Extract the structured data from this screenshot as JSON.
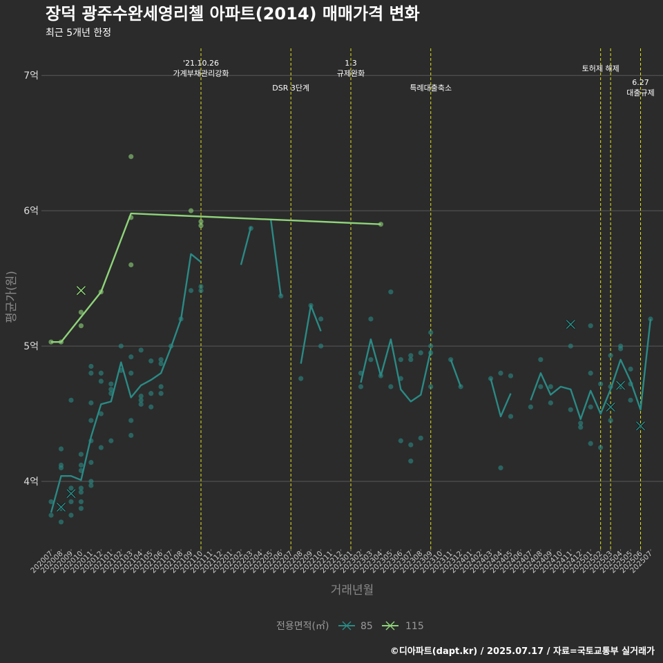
{
  "chart_data": {
    "type": "line",
    "title": "장덕 광주수완세영리첼 아파트(2014) 매매가격 변화",
    "subtitle": "최근 5개년 한정",
    "xlabel": "거래년월",
    "ylabel": "평균가(원)",
    "ylim": [
      3.5,
      7.2
    ],
    "yticks": [
      {
        "value": 4,
        "label": "4억"
      },
      {
        "value": 5,
        "label": "5억"
      },
      {
        "value": 6,
        "label": "6억"
      },
      {
        "value": 7,
        "label": "7억"
      }
    ],
    "categories": [
      "202007",
      "202008",
      "202009",
      "202010",
      "202011",
      "202012",
      "202101",
      "202102",
      "202103",
      "202104",
      "202105",
      "202106",
      "202107",
      "202108",
      "202109",
      "202110",
      "202111",
      "202112",
      "202201",
      "202202",
      "202203",
      "202204",
      "202205",
      "202206",
      "202207",
      "202208",
      "202209",
      "202210",
      "202211",
      "202212",
      "202301",
      "202302",
      "202303",
      "202304",
      "202305",
      "202306",
      "202307",
      "202308",
      "202309",
      "202310",
      "202311",
      "202312",
      "202401",
      "202402",
      "202403",
      "202404",
      "202405",
      "202406",
      "202407",
      "202408",
      "202409",
      "202410",
      "202411",
      "202412",
      "202501",
      "202502",
      "202503",
      "202504",
      "202505",
      "202506",
      "202507"
    ],
    "legend": {
      "title": "전용면적(㎡)",
      "position": "bottom"
    },
    "series": [
      {
        "name": "85",
        "color": "#2a8a85",
        "line": [
          [
            "202007",
            3.77
          ],
          [
            "202008",
            4.04
          ],
          [
            "202009",
            4.04
          ],
          [
            "202010",
            4.01
          ],
          [
            "202011",
            4.33
          ],
          [
            "202012",
            4.57
          ],
          [
            "202101",
            4.59
          ],
          [
            "202102",
            4.88
          ],
          [
            "202103",
            4.62
          ],
          [
            "202104",
            4.71
          ],
          [
            "202105",
            4.75
          ],
          [
            "202106",
            4.8
          ],
          [
            "202107",
            4.99
          ],
          [
            "202108",
            5.2
          ],
          [
            "202109",
            5.68
          ],
          [
            "202110",
            5.62
          ],
          null,
          [
            "202202",
            5.6
          ],
          [
            "202203",
            5.88
          ],
          null,
          [
            "202205",
            5.93
          ],
          [
            "202206",
            5.37
          ],
          null,
          [
            "202208",
            4.87
          ],
          [
            "202209",
            5.3
          ],
          [
            "202210",
            5.11
          ],
          null,
          [
            "202302",
            4.73
          ],
          [
            "202303",
            5.05
          ],
          [
            "202304",
            4.78
          ],
          [
            "202305",
            5.05
          ],
          [
            "202306",
            4.68
          ],
          [
            "202307",
            4.59
          ],
          [
            "202308",
            4.64
          ],
          [
            "202309",
            4.97
          ],
          null,
          [
            "202311",
            4.9
          ],
          [
            "202312",
            4.7
          ],
          null,
          [
            "202403",
            4.76
          ],
          [
            "202404",
            4.48
          ],
          [
            "202405",
            4.65
          ],
          null,
          [
            "202407",
            4.6
          ],
          [
            "202408",
            4.8
          ],
          [
            "202409",
            4.64
          ],
          [
            "202410",
            4.7
          ],
          [
            "202411",
            4.68
          ],
          [
            "202412",
            4.46
          ],
          [
            "202501",
            4.67
          ],
          [
            "202502",
            4.5
          ],
          [
            "202503",
            4.68
          ],
          [
            "202504",
            4.9
          ],
          [
            "202505",
            4.74
          ],
          [
            "202506",
            4.53
          ],
          [
            "202507",
            5.2
          ]
        ],
        "points": [
          [
            "202007",
            3.85
          ],
          [
            "202007",
            3.75
          ],
          [
            "202008",
            3.7
          ],
          [
            "202008",
            4.12
          ],
          [
            "202008",
            4.1
          ],
          [
            "202008",
            4.24
          ],
          [
            "202008",
            3.8
          ],
          [
            "202009",
            3.75
          ],
          [
            "202009",
            3.95
          ],
          [
            "202009",
            4.6
          ],
          [
            "202009",
            3.85
          ],
          [
            "202010",
            4.2
          ],
          [
            "202010",
            4.12
          ],
          [
            "202010",
            3.95
          ],
          [
            "202010",
            3.85
          ],
          [
            "202010",
            3.8
          ],
          [
            "202010",
            4.08
          ],
          [
            "202010",
            3.92
          ],
          [
            "202011",
            4.0
          ],
          [
            "202011",
            4.8
          ],
          [
            "202011",
            4.85
          ],
          [
            "202011",
            4.45
          ],
          [
            "202011",
            4.58
          ],
          [
            "202011",
            4.3
          ],
          [
            "202011",
            4.14
          ],
          [
            "202011",
            3.97
          ],
          [
            "202012",
            4.5
          ],
          [
            "202012",
            4.8
          ],
          [
            "202012",
            4.74
          ],
          [
            "202012",
            4.25
          ],
          [
            "202101",
            4.72
          ],
          [
            "202101",
            4.68
          ],
          [
            "202101",
            4.65
          ],
          [
            "202101",
            4.3
          ],
          [
            "202102",
            5.0
          ],
          [
            "202102",
            4.82
          ],
          [
            "202103",
            4.92
          ],
          [
            "202103",
            4.8
          ],
          [
            "202103",
            4.45
          ],
          [
            "202103",
            4.34
          ],
          [
            "202104",
            4.97
          ],
          [
            "202104",
            4.63
          ],
          [
            "202104",
            4.6
          ],
          [
            "202104",
            4.57
          ],
          [
            "202105",
            4.89
          ],
          [
            "202105",
            4.65
          ],
          [
            "202105",
            4.55
          ],
          [
            "202106",
            4.9
          ],
          [
            "202106",
            4.87
          ],
          [
            "202106",
            4.7
          ],
          [
            "202106",
            4.65
          ],
          [
            "202107",
            5.0
          ],
          [
            "202108",
            5.2
          ],
          [
            "202109",
            5.41
          ],
          [
            "202110",
            5.41
          ],
          [
            "202110",
            5.44
          ],
          [
            "202203",
            5.87
          ],
          [
            "202206",
            5.37
          ],
          [
            "202208",
            4.76
          ],
          [
            "202209",
            5.3
          ],
          [
            "202210",
            5.2
          ],
          [
            "202210",
            5.0
          ],
          [
            "202302",
            4.8
          ],
          [
            "202302",
            4.7
          ],
          [
            "202303",
            5.2
          ],
          [
            "202303",
            4.9
          ],
          [
            "202304",
            4.78
          ],
          [
            "202305",
            5.4
          ],
          [
            "202305",
            4.7
          ],
          [
            "202306",
            4.9
          ],
          [
            "202306",
            4.76
          ],
          [
            "202306",
            4.3
          ],
          [
            "202307",
            4.93
          ],
          [
            "202307",
            4.9
          ],
          [
            "202307",
            4.27
          ],
          [
            "202307",
            4.15
          ],
          [
            "202308",
            4.95
          ],
          [
            "202308",
            4.32
          ],
          [
            "202309",
            5.1
          ],
          [
            "202309",
            5.0
          ],
          [
            "202309",
            4.95
          ],
          [
            "202309",
            4.7
          ],
          [
            "202311",
            4.9
          ],
          [
            "202312",
            4.7
          ],
          [
            "202403",
            4.76
          ],
          [
            "202404",
            4.8
          ],
          [
            "202404",
            4.1
          ],
          [
            "202405",
            4.78
          ],
          [
            "202405",
            4.48
          ],
          [
            "202407",
            4.55
          ],
          [
            "202408",
            4.9
          ],
          [
            "202408",
            4.7
          ],
          [
            "202409",
            4.7
          ],
          [
            "202409",
            4.58
          ],
          [
            "202411",
            5.0
          ],
          [
            "202411",
            4.53
          ],
          [
            "202412",
            4.4
          ],
          [
            "202412",
            4.43
          ],
          [
            "202501",
            5.15
          ],
          [
            "202501",
            4.8
          ],
          [
            "202501",
            4.55
          ],
          [
            "202501",
            4.28
          ],
          [
            "202502",
            4.72
          ],
          [
            "202502",
            4.25
          ],
          [
            "202503",
            4.93
          ],
          [
            "202503",
            4.7
          ],
          [
            "202503",
            4.45
          ],
          [
            "202504",
            5.0
          ],
          [
            "202504",
            4.98
          ],
          [
            "202504",
            4.7
          ],
          [
            "202505",
            4.83
          ],
          [
            "202505",
            4.72
          ],
          [
            "202505",
            4.6
          ],
          [
            "202507",
            5.2
          ]
        ],
        "crosses": [
          [
            "202008",
            3.81
          ],
          [
            "202009",
            3.91
          ],
          [
            "202411",
            5.16
          ],
          [
            "202503",
            4.55
          ],
          [
            "202504",
            4.71
          ],
          [
            "202506",
            4.41
          ]
        ]
      },
      {
        "name": "115",
        "color": "#8fd47a",
        "line": [
          [
            "202007",
            5.03
          ],
          [
            "202008",
            5.03
          ],
          [
            "202012",
            5.4
          ],
          [
            "202103",
            5.98
          ],
          [
            "202304",
            5.9
          ]
        ],
        "points": [
          [
            "202007",
            5.03
          ],
          [
            "202008",
            5.03
          ],
          [
            "202010",
            5.25
          ],
          [
            "202010",
            5.15
          ],
          [
            "202012",
            5.4
          ],
          [
            "202103",
            6.4
          ],
          [
            "202103",
            5.6
          ],
          [
            "202103",
            5.95
          ],
          [
            "202109",
            6.0
          ],
          [
            "202110",
            5.89
          ],
          [
            "202110",
            5.92
          ],
          [
            "202304",
            5.9
          ]
        ],
        "crosses": [
          [
            "202010",
            5.41
          ]
        ]
      }
    ],
    "events": [
      {
        "x": "202110",
        "offset": 0.0,
        "lines": [
          "'21.10.26",
          "가계부채관리강화"
        ],
        "level": 1
      },
      {
        "x": "202207",
        "offset": 0.0,
        "lines": [
          "DSR 3단계"
        ],
        "level": 2
      },
      {
        "x": "202301",
        "offset": 0.0,
        "lines": [
          "1.3",
          "규제완화"
        ],
        "level": 1
      },
      {
        "x": "202309",
        "offset": 0.0,
        "lines": [
          "특례대출축소"
        ],
        "level": 2
      },
      {
        "x": "202502",
        "offset": 0.0,
        "lines": [
          "토허제 해제"
        ],
        "level": 1.5
      },
      {
        "x": "202503",
        "offset": 0.0,
        "lines": [],
        "level": 0
      },
      {
        "x": "202506",
        "offset": 0.0,
        "lines": [
          "6.27",
          "대출규제"
        ],
        "level": 3
      }
    ],
    "caption": "©디아파트(dapt.kr) / 2025.07.17 / 자료=국토교통부 실거래가"
  }
}
